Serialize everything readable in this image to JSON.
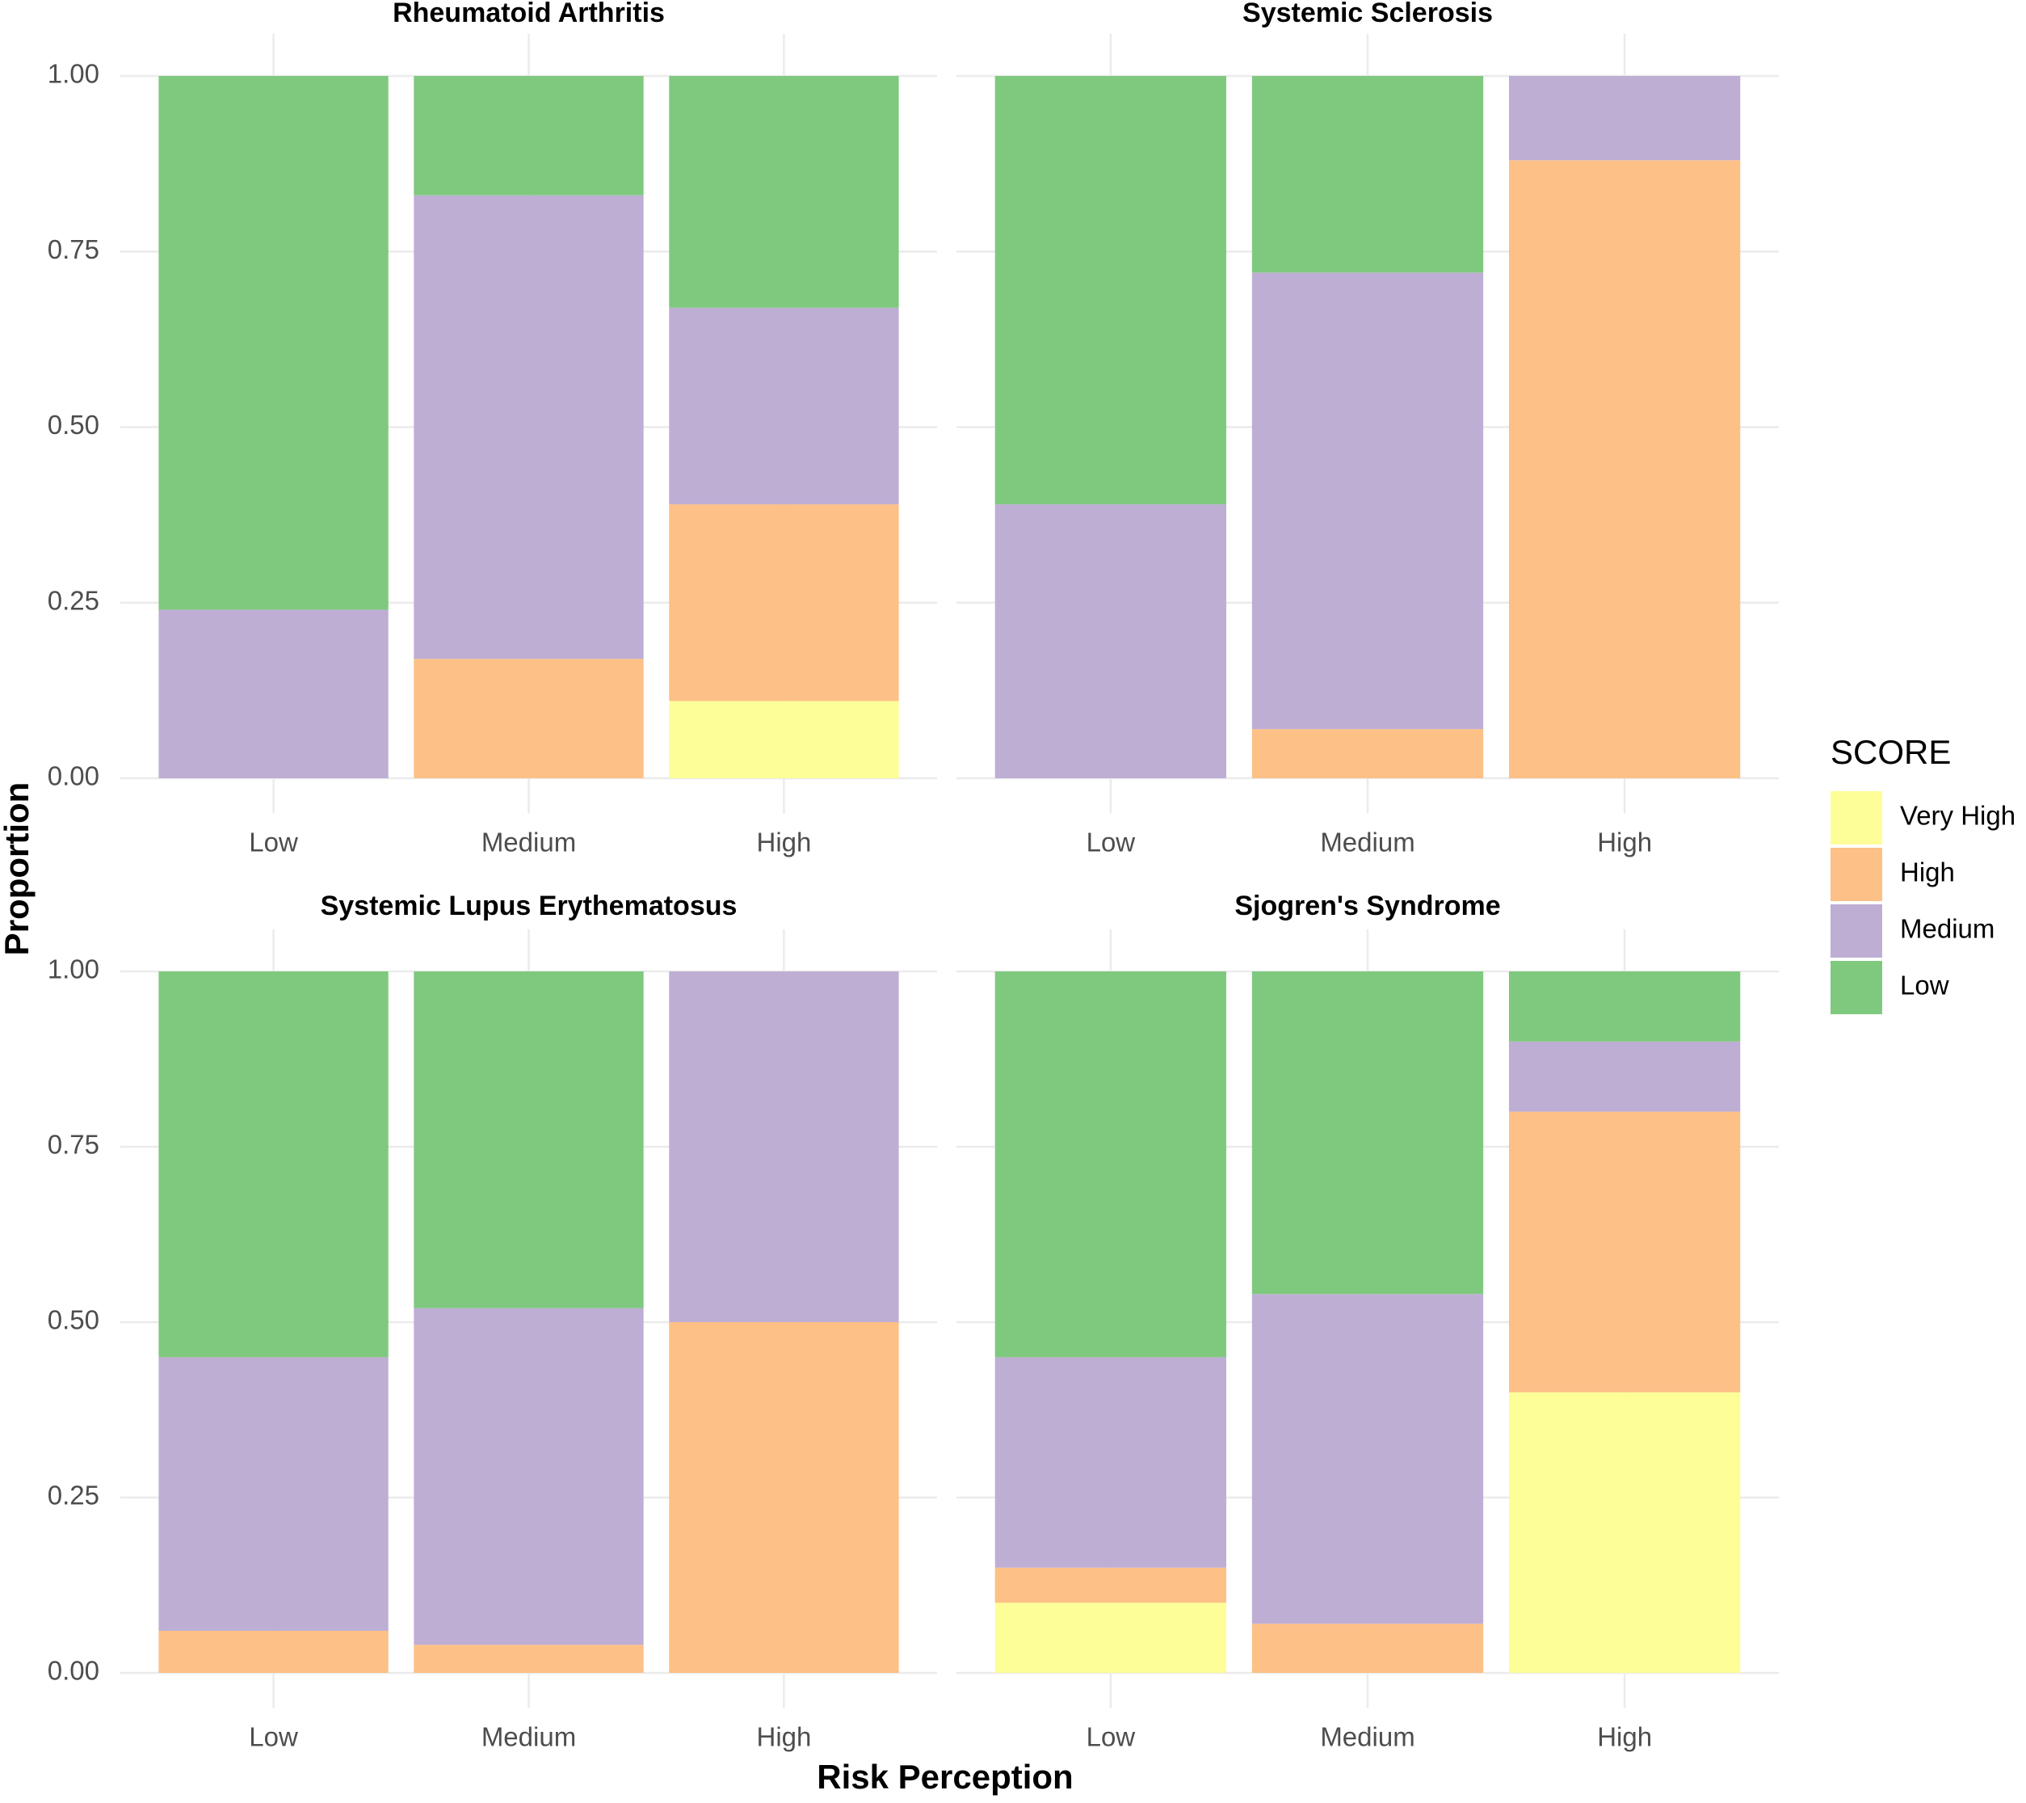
{
  "y_label": "Proportion",
  "x_label": "Risk Perception",
  "legend_title": "SCORE",
  "chart_data": [
    {
      "type": "bar",
      "title": "Rheumatoid Arthritis",
      "categories": [
        "Low",
        "Medium",
        "High"
      ],
      "series": [
        {
          "name": "Very High",
          "color": "#fdfe98",
          "values": [
            0,
            0,
            0.11
          ]
        },
        {
          "name": "High",
          "color": "#fdc086",
          "values": [
            0,
            0.17,
            0.28
          ]
        },
        {
          "name": "Medium",
          "color": "#beaed4",
          "values": [
            0.24,
            0.66,
            0.28
          ]
        },
        {
          "name": "Low",
          "color": "#7fc97f",
          "values": [
            0.76,
            0.17,
            0.33
          ]
        }
      ],
      "ylim": [
        0,
        1
      ],
      "yticks": [
        {
          "value": 0,
          "label": "0.00"
        },
        {
          "value": 0.25,
          "label": "0.25"
        },
        {
          "value": 0.5,
          "label": "0.50"
        },
        {
          "value": 0.75,
          "label": "0.75"
        },
        {
          "value": 1,
          "label": "1.00"
        }
      ],
      "grid": true
    },
    {
      "type": "bar",
      "title": "Systemic Sclerosis",
      "categories": [
        "Low",
        "Medium",
        "High"
      ],
      "series": [
        {
          "name": "Very High",
          "color": "#fdfe98",
          "values": [
            0,
            0,
            0
          ]
        },
        {
          "name": "High",
          "color": "#fdc086",
          "values": [
            0,
            0.07,
            0.88
          ]
        },
        {
          "name": "Medium",
          "color": "#beaed4",
          "values": [
            0.39,
            0.65,
            0.12
          ]
        },
        {
          "name": "Low",
          "color": "#7fc97f",
          "values": [
            0.61,
            0.28,
            0
          ]
        }
      ],
      "ylim": [
        0,
        1
      ],
      "yticks": [
        {
          "value": 0,
          "label": "0.00"
        },
        {
          "value": 0.25,
          "label": "0.25"
        },
        {
          "value": 0.5,
          "label": "0.50"
        },
        {
          "value": 0.75,
          "label": "0.75"
        },
        {
          "value": 1,
          "label": "1.00"
        }
      ],
      "grid": true
    },
    {
      "type": "bar",
      "title": "Systemic Lupus Erythematosus",
      "categories": [
        "Low",
        "Medium",
        "High"
      ],
      "series": [
        {
          "name": "Very High",
          "color": "#fdfe98",
          "values": [
            0,
            0,
            0
          ]
        },
        {
          "name": "High",
          "color": "#fdc086",
          "values": [
            0.06,
            0.04,
            0.5
          ]
        },
        {
          "name": "Medium",
          "color": "#beaed4",
          "values": [
            0.39,
            0.48,
            0.5
          ]
        },
        {
          "name": "Low",
          "color": "#7fc97f",
          "values": [
            0.55,
            0.48,
            0
          ]
        }
      ],
      "ylim": [
        0,
        1
      ],
      "yticks": [
        {
          "value": 0,
          "label": "0.00"
        },
        {
          "value": 0.25,
          "label": "0.25"
        },
        {
          "value": 0.5,
          "label": "0.50"
        },
        {
          "value": 0.75,
          "label": "0.75"
        },
        {
          "value": 1,
          "label": "1.00"
        }
      ],
      "grid": true
    },
    {
      "type": "bar",
      "title": "Sjogren's Syndrome",
      "categories": [
        "Low",
        "Medium",
        "High"
      ],
      "series": [
        {
          "name": "Very High",
          "color": "#fdfe98",
          "values": [
            0.1,
            0,
            0.4
          ]
        },
        {
          "name": "High",
          "color": "#fdc086",
          "values": [
            0.05,
            0.07,
            0.4
          ]
        },
        {
          "name": "Medium",
          "color": "#beaed4",
          "values": [
            0.3,
            0.47,
            0.1
          ]
        },
        {
          "name": "Low",
          "color": "#7fc97f",
          "values": [
            0.55,
            0.46,
            0.1
          ]
        }
      ],
      "ylim": [
        0,
        1
      ],
      "yticks": [
        {
          "value": 0,
          "label": "0.00"
        },
        {
          "value": 0.25,
          "label": "0.25"
        },
        {
          "value": 0.5,
          "label": "0.50"
        },
        {
          "value": 0.75,
          "label": "0.75"
        },
        {
          "value": 1,
          "label": "1.00"
        }
      ],
      "grid": true
    }
  ]
}
